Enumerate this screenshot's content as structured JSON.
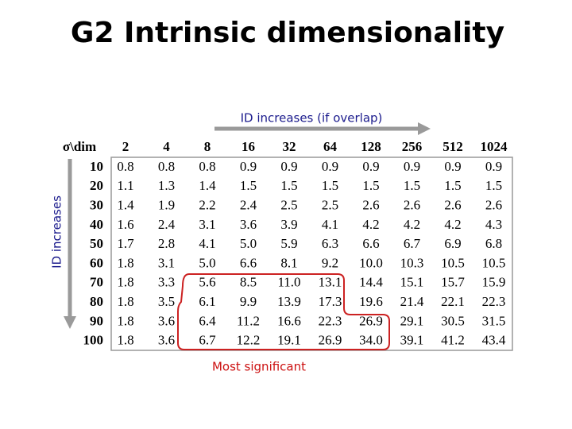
{
  "title": "G2  Intrinsic dimensionality",
  "annotations": {
    "top": "ID increases (if overlap)",
    "side": "ID increases",
    "bottom": "Most significant"
  },
  "table": {
    "corner": "σ\\dim",
    "columns": [
      "2",
      "4",
      "8",
      "16",
      "32",
      "64",
      "128",
      "256",
      "512",
      "1024"
    ],
    "rows": [
      {
        "label": "10",
        "cells": [
          "0.8",
          "0.8",
          "0.8",
          "0.9",
          "0.9",
          "0.9",
          "0.9",
          "0.9",
          "0.9",
          "0.9"
        ]
      },
      {
        "label": "20",
        "cells": [
          "1.1",
          "1.3",
          "1.4",
          "1.5",
          "1.5",
          "1.5",
          "1.5",
          "1.5",
          "1.5",
          "1.5"
        ]
      },
      {
        "label": "30",
        "cells": [
          "1.4",
          "1.9",
          "2.2",
          "2.4",
          "2.5",
          "2.5",
          "2.6",
          "2.6",
          "2.6",
          "2.6"
        ]
      },
      {
        "label": "40",
        "cells": [
          "1.6",
          "2.4",
          "3.1",
          "3.6",
          "3.9",
          "4.1",
          "4.2",
          "4.2",
          "4.2",
          "4.3"
        ]
      },
      {
        "label": "50",
        "cells": [
          "1.7",
          "2.8",
          "4.1",
          "5.0",
          "5.9",
          "6.3",
          "6.6",
          "6.7",
          "6.9",
          "6.8"
        ]
      },
      {
        "label": "60",
        "cells": [
          "1.8",
          "3.1",
          "5.0",
          "6.6",
          "8.1",
          "9.2",
          "10.0",
          "10.3",
          "10.5",
          "10.5"
        ]
      },
      {
        "label": "70",
        "cells": [
          "1.8",
          "3.3",
          "5.6",
          "8.5",
          "11.0",
          "13.1",
          "14.4",
          "15.1",
          "15.7",
          "15.9"
        ]
      },
      {
        "label": "80",
        "cells": [
          "1.8",
          "3.5",
          "6.1",
          "9.9",
          "13.9",
          "17.3",
          "19.6",
          "21.4",
          "22.1",
          "22.3"
        ]
      },
      {
        "label": "90",
        "cells": [
          "1.8",
          "3.6",
          "6.4",
          "11.2",
          "16.6",
          "22.3",
          "26.9",
          "29.1",
          "30.5",
          "31.5"
        ]
      },
      {
        "label": "100",
        "cells": [
          "1.8",
          "3.6",
          "6.7",
          "12.2",
          "19.1",
          "26.9",
          "34.0",
          "39.1",
          "41.2",
          "43.4"
        ]
      }
    ]
  }
}
